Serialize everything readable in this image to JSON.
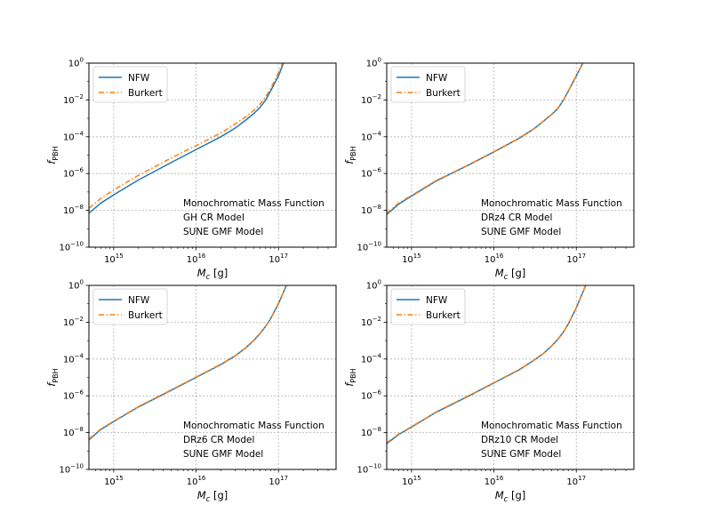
{
  "figure": {
    "colors": {
      "nfw": "#1f77b4",
      "burkert": "#ff7f0e",
      "grid": "#b0b0b0",
      "axes": "#000000"
    }
  },
  "chart_data": [
    {
      "type": "line",
      "xscale": "log",
      "yscale": "log",
      "xlim": [
        500000000000000.0,
        5e+17
      ],
      "ylim": [
        1e-10,
        1
      ],
      "xlabel_main": "M",
      "xlabel_sub": "c",
      "xlabel_unit": " [g]",
      "ylabel_main": "f",
      "ylabel_sub": "PBH",
      "xticks": [
        {
          "value": 1000000000000000.0,
          "base": "10",
          "exp": "15"
        },
        {
          "value": 1e+16,
          "base": "10",
          "exp": "16"
        },
        {
          "value": 1e+17,
          "base": "10",
          "exp": "17"
        }
      ],
      "yticks": [
        {
          "value": 1e-10,
          "base": "10",
          "exp": "−10"
        },
        {
          "value": 1e-08,
          "base": "10",
          "exp": "−8"
        },
        {
          "value": 1e-06,
          "base": "10",
          "exp": "−6"
        },
        {
          "value": 0.0001,
          "base": "10",
          "exp": "−4"
        },
        {
          "value": 0.01,
          "base": "10",
          "exp": "−2"
        },
        {
          "value": 1,
          "base": "10",
          "exp": "0"
        }
      ],
      "grid": true,
      "legend": "top-left",
      "annotation": [
        "Monochromatic Mass Function",
        "GH CR Model",
        "SUNE GMF Model"
      ],
      "series": [
        {
          "name": "NFW",
          "style": "solid",
          "color": "#1f77b4",
          "x": [
            500000000000000.0,
            700000000000000.0,
            1000000000000000.0,
            2000000000000000.0,
            5000000000000000.0,
            1e+16,
            2e+16,
            3e+16,
            4e+16,
            5e+16,
            6e+16,
            7e+16,
            8e+16,
            1e+17,
            1.15e+17
          ],
          "y": [
            7e-09,
            2.5e-08,
            7e-08,
            4.5e-07,
            4e-06,
            2e-05,
            0.0001,
            0.0003,
            0.0008,
            0.0018,
            0.004,
            0.01,
            0.03,
            0.2,
            1
          ]
        },
        {
          "name": "Burkert",
          "style": "dashdot",
          "color": "#ff7f0e",
          "x": [
            500000000000000.0,
            700000000000000.0,
            1000000000000000.0,
            2000000000000000.0,
            5000000000000000.0,
            1e+16,
            2e+16,
            3e+16,
            4e+16,
            5e+16,
            6e+16,
            7e+16,
            8e+16,
            1e+17,
            1.12e+17
          ],
          "y": [
            1.3e-08,
            4.5e-08,
            1.3e-07,
            8e-07,
            7e-06,
            3.3e-05,
            0.00016,
            0.0005,
            0.0012,
            0.0027,
            0.006,
            0.015,
            0.04,
            0.3,
            1
          ]
        }
      ]
    },
    {
      "type": "line",
      "xscale": "log",
      "yscale": "log",
      "xlim": [
        500000000000000.0,
        5e+17
      ],
      "ylim": [
        1e-10,
        1
      ],
      "xlabel_main": "M",
      "xlabel_sub": "c",
      "xlabel_unit": " [g]",
      "ylabel_main": "f",
      "ylabel_sub": "PBH",
      "xticks": [
        {
          "value": 1000000000000000.0,
          "base": "10",
          "exp": "15"
        },
        {
          "value": 1e+16,
          "base": "10",
          "exp": "16"
        },
        {
          "value": 1e+17,
          "base": "10",
          "exp": "17"
        }
      ],
      "yticks": [
        {
          "value": 1e-10,
          "base": "10",
          "exp": "−10"
        },
        {
          "value": 1e-08,
          "base": "10",
          "exp": "−8"
        },
        {
          "value": 1e-06,
          "base": "10",
          "exp": "−6"
        },
        {
          "value": 0.0001,
          "base": "10",
          "exp": "−4"
        },
        {
          "value": 0.01,
          "base": "10",
          "exp": "−2"
        },
        {
          "value": 1,
          "base": "10",
          "exp": "0"
        }
      ],
      "grid": true,
      "legend": "top-left",
      "annotation": [
        "Monochromatic Mass Function",
        "DRz4 CR Model",
        "SUNE GMF Model"
      ],
      "series": [
        {
          "name": "NFW",
          "style": "solid",
          "color": "#1f77b4",
          "x": [
            500000000000000.0,
            700000000000000.0,
            1000000000000000.0,
            2000000000000000.0,
            5000000000000000.0,
            1e+16,
            2e+16,
            3e+16,
            4e+16,
            5e+16,
            6e+16,
            7e+16,
            8e+16,
            1e+17,
            1.2e+17
          ],
          "y": [
            6e-09,
            2.2e-08,
            6e-08,
            4e-07,
            3e-06,
            1.5e-05,
            8e-05,
            0.00025,
            0.0007,
            0.0016,
            0.0035,
            0.01,
            0.03,
            0.2,
            1
          ]
        },
        {
          "name": "Burkert",
          "style": "dashdot",
          "color": "#ff7f0e",
          "x": [
            500000000000000.0,
            700000000000000.0,
            1000000000000000.0,
            2000000000000000.0,
            5000000000000000.0,
            1e+16,
            2e+16,
            3e+16,
            4e+16,
            5e+16,
            6e+16,
            7e+16,
            8e+16,
            1e+17,
            1.2e+17
          ],
          "y": [
            7e-09,
            2.5e-08,
            6.5e-08,
            4.2e-07,
            3.1e-06,
            1.55e-05,
            8.2e-05,
            0.00026,
            0.00072,
            0.00165,
            0.0036,
            0.0103,
            0.031,
            0.21,
            1
          ]
        }
      ]
    },
    {
      "type": "line",
      "xscale": "log",
      "yscale": "log",
      "xlim": [
        500000000000000.0,
        5e+17
      ],
      "ylim": [
        1e-10,
        1
      ],
      "xlabel_main": "M",
      "xlabel_sub": "c",
      "xlabel_unit": " [g]",
      "ylabel_main": "f",
      "ylabel_sub": "PBH",
      "xticks": [
        {
          "value": 1000000000000000.0,
          "base": "10",
          "exp": "15"
        },
        {
          "value": 1e+16,
          "base": "10",
          "exp": "16"
        },
        {
          "value": 1e+17,
          "base": "10",
          "exp": "17"
        }
      ],
      "yticks": [
        {
          "value": 1e-10,
          "base": "10",
          "exp": "−10"
        },
        {
          "value": 1e-08,
          "base": "10",
          "exp": "−8"
        },
        {
          "value": 1e-06,
          "base": "10",
          "exp": "−6"
        },
        {
          "value": 0.0001,
          "base": "10",
          "exp": "−4"
        },
        {
          "value": 0.01,
          "base": "10",
          "exp": "−2"
        },
        {
          "value": 1,
          "base": "10",
          "exp": "0"
        }
      ],
      "grid": true,
      "legend": "top-left",
      "annotation": [
        "Monochromatic Mass Function",
        "DRz6 CR Model",
        "SUNE GMF Model"
      ],
      "series": [
        {
          "name": "NFW",
          "style": "solid",
          "color": "#1f77b4",
          "x": [
            500000000000000.0,
            700000000000000.0,
            1000000000000000.0,
            2000000000000000.0,
            5000000000000000.0,
            1e+16,
            2e+16,
            3e+16,
            4e+16,
            5e+16,
            6e+16,
            7e+16,
            8e+16,
            1e+17,
            1.25e+17
          ],
          "y": [
            4e-09,
            1.5e-08,
            4e-08,
            2.5e-07,
            2e-06,
            1e-05,
            5e-05,
            0.00015,
            0.0004,
            0.001,
            0.0025,
            0.006,
            0.015,
            0.1,
            1
          ]
        },
        {
          "name": "Burkert",
          "style": "dashdot",
          "color": "#ff7f0e",
          "x": [
            500000000000000.0,
            700000000000000.0,
            1000000000000000.0,
            2000000000000000.0,
            5000000000000000.0,
            1e+16,
            2e+16,
            3e+16,
            4e+16,
            5e+16,
            6e+16,
            7e+16,
            8e+16,
            1e+17,
            1.25e+17
          ],
          "y": [
            4.5e-09,
            1.6e-08,
            4.2e-08,
            2.6e-07,
            2.1e-06,
            1.05e-05,
            5.2e-05,
            0.000155,
            0.00041,
            0.00103,
            0.00255,
            0.0061,
            0.0155,
            0.11,
            1
          ]
        }
      ]
    },
    {
      "type": "line",
      "xscale": "log",
      "yscale": "log",
      "xlim": [
        500000000000000.0,
        5e+17
      ],
      "ylim": [
        1e-10,
        1
      ],
      "xlabel_main": "M",
      "xlabel_sub": "c",
      "xlabel_unit": " [g]",
      "ylabel_main": "f",
      "ylabel_sub": "PBH",
      "xticks": [
        {
          "value": 1000000000000000.0,
          "base": "10",
          "exp": "15"
        },
        {
          "value": 1e+16,
          "base": "10",
          "exp": "16"
        },
        {
          "value": 1e+17,
          "base": "10",
          "exp": "17"
        }
      ],
      "yticks": [
        {
          "value": 1e-10,
          "base": "10",
          "exp": "−10"
        },
        {
          "value": 1e-08,
          "base": "10",
          "exp": "−8"
        },
        {
          "value": 1e-06,
          "base": "10",
          "exp": "−6"
        },
        {
          "value": 0.0001,
          "base": "10",
          "exp": "−4"
        },
        {
          "value": 0.01,
          "base": "10",
          "exp": "−2"
        },
        {
          "value": 1,
          "base": "10",
          "exp": "0"
        }
      ],
      "grid": true,
      "legend": "top-left",
      "annotation": [
        "Monochromatic Mass Function",
        "DRz10 CR Model",
        "SUNE GMF Model"
      ],
      "series": [
        {
          "name": "NFW",
          "style": "solid",
          "color": "#1f77b4",
          "x": [
            500000000000000.0,
            700000000000000.0,
            1000000000000000.0,
            2000000000000000.0,
            5000000000000000.0,
            1e+16,
            2e+16,
            3e+16,
            4e+16,
            5e+16,
            6e+16,
            7e+16,
            8e+16,
            1e+17,
            1.3e+17
          ],
          "y": [
            2.5e-09,
            8e-09,
            2e-08,
            1.3e-07,
            1e-06,
            5e-06,
            2.5e-05,
            8e-05,
            0.0002,
            0.0005,
            0.0012,
            0.003,
            0.008,
            0.06,
            1
          ]
        },
        {
          "name": "Burkert",
          "style": "dashdot",
          "color": "#ff7f0e",
          "x": [
            500000000000000.0,
            700000000000000.0,
            1000000000000000.0,
            2000000000000000.0,
            5000000000000000.0,
            1e+16,
            2e+16,
            3e+16,
            4e+16,
            5e+16,
            6e+16,
            7e+16,
            8e+16,
            1e+17,
            1.3e+17
          ],
          "y": [
            2.8e-09,
            8.5e-09,
            2.1e-08,
            1.35e-07,
            1.05e-06,
            5.2e-06,
            2.6e-05,
            8.2e-05,
            0.000205,
            0.00051,
            0.00123,
            0.00305,
            0.0082,
            0.062,
            1
          ]
        }
      ]
    }
  ]
}
